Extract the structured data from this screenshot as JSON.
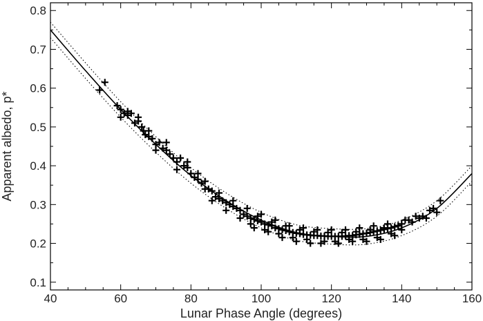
{
  "chart_data": {
    "type": "scatter",
    "title": "",
    "xlabel": "Lunar Phase Angle (degrees)",
    "ylabel": "Apparent albedo, p*",
    "xlim": [
      40,
      160
    ],
    "ylim": [
      0.08,
      0.82
    ],
    "xticks": [
      40,
      60,
      80,
      100,
      120,
      140,
      160
    ],
    "xtick_labels": [
      "40",
      "60",
      "80",
      "100",
      "120",
      "140",
      "160"
    ],
    "yticks": [
      0.1,
      0.2,
      0.3,
      0.4,
      0.5,
      0.6,
      0.7,
      0.8
    ],
    "ytick_labels": [
      "0.1",
      "0.2",
      "0.3",
      "0.4",
      "0.5",
      "0.6",
      "0.7",
      "0.8"
    ],
    "grid": false,
    "legend": "none",
    "marker": "+",
    "fit_curve": {
      "style": "solid",
      "x": [
        40,
        50,
        60,
        70,
        80,
        90,
        100,
        110,
        120,
        130,
        140,
        150,
        160
      ],
      "y": [
        0.75,
        0.645,
        0.545,
        0.455,
        0.375,
        0.31,
        0.26,
        0.228,
        0.218,
        0.218,
        0.24,
        0.29,
        0.38
      ]
    },
    "upper_bound": {
      "style": "dotted",
      "x": [
        40,
        50,
        60,
        70,
        80,
        90,
        100,
        110,
        120,
        130,
        140,
        150,
        160
      ],
      "y": [
        0.77,
        0.665,
        0.565,
        0.475,
        0.395,
        0.33,
        0.28,
        0.248,
        0.238,
        0.238,
        0.26,
        0.31,
        0.4
      ]
    },
    "lower_bound": {
      "style": "dotted",
      "x": [
        40,
        50,
        60,
        70,
        80,
        90,
        100,
        110,
        120,
        130,
        140,
        150,
        160
      ],
      "y": [
        0.73,
        0.625,
        0.525,
        0.435,
        0.355,
        0.29,
        0.24,
        0.208,
        0.198,
        0.198,
        0.22,
        0.27,
        0.36
      ]
    },
    "points": [
      [
        54,
        0.595
      ],
      [
        55.5,
        0.615
      ],
      [
        59,
        0.555
      ],
      [
        60,
        0.545
      ],
      [
        61,
        0.535
      ],
      [
        62,
        0.53
      ],
      [
        63,
        0.535
      ],
      [
        64,
        0.51
      ],
      [
        65,
        0.515
      ],
      [
        66,
        0.5
      ],
      [
        66.5,
        0.49
      ],
      [
        67,
        0.48
      ],
      [
        68,
        0.475
      ],
      [
        69,
        0.47
      ],
      [
        70,
        0.455
      ],
      [
        71,
        0.46
      ],
      [
        72,
        0.445
      ],
      [
        73,
        0.44
      ],
      [
        74,
        0.43
      ],
      [
        75,
        0.42
      ],
      [
        76,
        0.41
      ],
      [
        77,
        0.42
      ],
      [
        78,
        0.4
      ],
      [
        79,
        0.395
      ],
      [
        80,
        0.38
      ],
      [
        81,
        0.37
      ],
      [
        82,
        0.365
      ],
      [
        83,
        0.355
      ],
      [
        84,
        0.36
      ],
      [
        85,
        0.34
      ],
      [
        86,
        0.335
      ],
      [
        87,
        0.32
      ],
      [
        88,
        0.315
      ],
      [
        89,
        0.31
      ],
      [
        90,
        0.305
      ],
      [
        91,
        0.3
      ],
      [
        92,
        0.295
      ],
      [
        93,
        0.29
      ],
      [
        94,
        0.285
      ],
      [
        95,
        0.275
      ],
      [
        96,
        0.27
      ],
      [
        97,
        0.265
      ],
      [
        98,
        0.262
      ],
      [
        99,
        0.258
      ],
      [
        100,
        0.255
      ],
      [
        101,
        0.25
      ],
      [
        102,
        0.248
      ],
      [
        103,
        0.245
      ],
      [
        104,
        0.24
      ],
      [
        105,
        0.238
      ],
      [
        106,
        0.235
      ],
      [
        107,
        0.233
      ],
      [
        108,
        0.23
      ],
      [
        109,
        0.228
      ],
      [
        110,
        0.226
      ],
      [
        111,
        0.225
      ],
      [
        112,
        0.223
      ],
      [
        113,
        0.222
      ],
      [
        114,
        0.221
      ],
      [
        115,
        0.22
      ],
      [
        116,
        0.22
      ],
      [
        117,
        0.219
      ],
      [
        118,
        0.219
      ],
      [
        119,
        0.218
      ],
      [
        120,
        0.218
      ],
      [
        121,
        0.218
      ],
      [
        122,
        0.218
      ],
      [
        123,
        0.218
      ],
      [
        124,
        0.219
      ],
      [
        125,
        0.22
      ],
      [
        126,
        0.22
      ],
      [
        127,
        0.222
      ],
      [
        128,
        0.223
      ],
      [
        129,
        0.225
      ],
      [
        130,
        0.226
      ],
      [
        131,
        0.228
      ],
      [
        132,
        0.23
      ],
      [
        133,
        0.232
      ],
      [
        134,
        0.234
      ],
      [
        135,
        0.236
      ],
      [
        136,
        0.238
      ],
      [
        137,
        0.24
      ],
      [
        138,
        0.243
      ],
      [
        139,
        0.246
      ],
      [
        140,
        0.25
      ],
      [
        142,
        0.26
      ],
      [
        144,
        0.27
      ],
      [
        146,
        0.27
      ],
      [
        148,
        0.285
      ],
      [
        149,
        0.29
      ],
      [
        151,
        0.31
      ],
      [
        82,
        0.38
      ],
      [
        84,
        0.34
      ],
      [
        86,
        0.31
      ],
      [
        88,
        0.33
      ],
      [
        90,
        0.285
      ],
      [
        92,
        0.31
      ],
      [
        94,
        0.265
      ],
      [
        96,
        0.29
      ],
      [
        98,
        0.24
      ],
      [
        100,
        0.275
      ],
      [
        102,
        0.23
      ],
      [
        104,
        0.26
      ],
      [
        106,
        0.215
      ],
      [
        108,
        0.245
      ],
      [
        110,
        0.205
      ],
      [
        112,
        0.24
      ],
      [
        114,
        0.2
      ],
      [
        116,
        0.235
      ],
      [
        118,
        0.205
      ],
      [
        120,
        0.235
      ],
      [
        122,
        0.2
      ],
      [
        124,
        0.235
      ],
      [
        126,
        0.205
      ],
      [
        128,
        0.24
      ],
      [
        130,
        0.205
      ],
      [
        132,
        0.245
      ],
      [
        134,
        0.21
      ],
      [
        136,
        0.25
      ],
      [
        138,
        0.22
      ],
      [
        140,
        0.235
      ],
      [
        141,
        0.26
      ],
      [
        143,
        0.255
      ],
      [
        145,
        0.265
      ],
      [
        147,
        0.265
      ],
      [
        150,
        0.28
      ],
      [
        97,
        0.25
      ],
      [
        99,
        0.27
      ],
      [
        101,
        0.235
      ],
      [
        103,
        0.255
      ],
      [
        105,
        0.225
      ],
      [
        107,
        0.245
      ],
      [
        109,
        0.215
      ],
      [
        111,
        0.235
      ],
      [
        113,
        0.21
      ],
      [
        115,
        0.23
      ],
      [
        117,
        0.2
      ],
      [
        119,
        0.228
      ],
      [
        121,
        0.205
      ],
      [
        123,
        0.228
      ],
      [
        125,
        0.21
      ],
      [
        127,
        0.23
      ],
      [
        129,
        0.21
      ],
      [
        131,
        0.235
      ],
      [
        133,
        0.215
      ],
      [
        135,
        0.24
      ],
      [
        137,
        0.225
      ],
      [
        139,
        0.245
      ],
      [
        79,
        0.41
      ],
      [
        76,
        0.39
      ],
      [
        73,
        0.46
      ],
      [
        70,
        0.44
      ],
      [
        68,
        0.49
      ],
      [
        65,
        0.525
      ],
      [
        62,
        0.54
      ],
      [
        60,
        0.525
      ]
    ]
  }
}
